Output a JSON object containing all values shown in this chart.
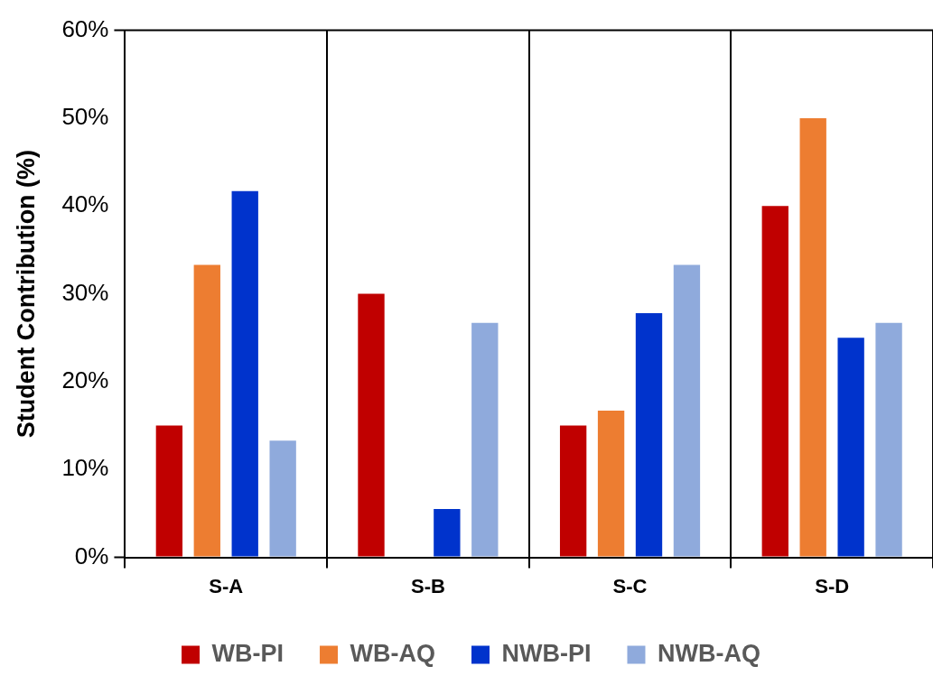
{
  "chart_data": {
    "type": "bar",
    "ylabel": "Student Contribution (%)",
    "categories": [
      "S-A",
      "S-B",
      "S-C",
      "S-D"
    ],
    "series": [
      {
        "name": "WB-PI",
        "color": "#c00000",
        "values": [
          15,
          30,
          15,
          40
        ]
      },
      {
        "name": "WB-AQ",
        "color": "#ed7d31",
        "values": [
          33.3,
          0,
          16.7,
          50
        ]
      },
      {
        "name": "NWB-PI",
        "color": "#0033cc",
        "values": [
          41.7,
          5.5,
          27.8,
          25
        ]
      },
      {
        "name": "NWB-AQ",
        "color": "#8faadc",
        "values": [
          13.3,
          26.7,
          33.3,
          26.7
        ]
      }
    ],
    "ylim": [
      0,
      60
    ],
    "yticks": [
      {
        "value": 0,
        "label": "0%"
      },
      {
        "value": 10,
        "label": "10%"
      },
      {
        "value": 20,
        "label": "20%"
      },
      {
        "value": 30,
        "label": "30%"
      },
      {
        "value": 40,
        "label": "40%"
      },
      {
        "value": 50,
        "label": "50%"
      },
      {
        "value": 60,
        "label": "60%"
      }
    ],
    "grid": "x",
    "legend": "bottom"
  }
}
